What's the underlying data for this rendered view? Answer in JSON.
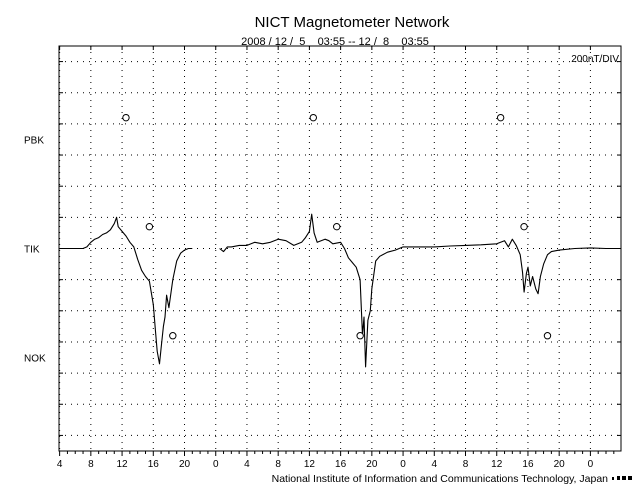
{
  "chart_data": {
    "type": "line",
    "title": "NICT Magnetometer Network",
    "subtitle": "2008 / 12 /  5    03:55 -- 12 /  8    03:55",
    "scale_label": "200nT/DIV",
    "credit": "National Institute of Information and Communications Technology, Japan",
    "x_tick_labels": [
      "4",
      "8",
      "12",
      "16",
      "20",
      "0",
      "4",
      "8",
      "12",
      "16",
      "20",
      "0",
      "4",
      "8",
      "12",
      "16",
      "20",
      "0"
    ],
    "x_ticks_hours": [
      4,
      8,
      12,
      16,
      20,
      24,
      28,
      32,
      36,
      40,
      44,
      48,
      52,
      56,
      60,
      64,
      68,
      72
    ],
    "xlim_hours": [
      3.92,
      75.92
    ],
    "ylim_divisions": [
      -6.5,
      6.5
    ],
    "grid": true,
    "stations": [
      {
        "name": "PBK",
        "baseline_div": 3.5
      },
      {
        "name": "TIK",
        "baseline_div": 0
      },
      {
        "name": "NOK",
        "baseline_div": -3.5
      }
    ],
    "series": [
      {
        "name": "TIK",
        "baseline_div": 0,
        "segments": [
          [
            [
              3.92,
              0
            ],
            [
              7.0,
              0
            ],
            [
              7.5,
              0.05
            ],
            [
              8.0,
              0.2
            ],
            [
              8.5,
              0.3
            ],
            [
              9.0,
              0.35
            ],
            [
              9.5,
              0.45
            ],
            [
              10.0,
              0.5
            ],
            [
              10.5,
              0.6
            ],
            [
              11.0,
              0.8
            ],
            [
              11.3,
              1.0
            ],
            [
              11.5,
              0.7
            ],
            [
              12.0,
              0.55
            ],
            [
              12.5,
              0.4
            ],
            [
              13.0,
              0.2
            ],
            [
              13.5,
              0.05
            ],
            [
              14.0,
              -0.35
            ],
            [
              14.5,
              -0.7
            ],
            [
              15.0,
              -0.9
            ],
            [
              15.5,
              -1.05
            ],
            [
              16.0,
              -1.8
            ],
            [
              16.3,
              -2.7
            ],
            [
              16.5,
              -3.3
            ],
            [
              16.8,
              -3.7
            ],
            [
              17.0,
              -3.2
            ],
            [
              17.3,
              -2.5
            ],
            [
              17.5,
              -2.2
            ],
            [
              17.7,
              -1.5
            ],
            [
              18.0,
              -1.9
            ],
            [
              18.5,
              -1.0
            ],
            [
              19.0,
              -0.4
            ],
            [
              19.5,
              -0.15
            ],
            [
              20.0,
              -0.05
            ],
            [
              20.5,
              0.0
            ],
            [
              21.0,
              0.0
            ]
          ],
          [
            [
              24.5,
              0
            ],
            [
              25.0,
              -0.1
            ],
            [
              25.5,
              0.05
            ],
            [
              26.0,
              0.05
            ],
            [
              27.0,
              0.1
            ],
            [
              28.0,
              0.1
            ],
            [
              29.0,
              0.2
            ],
            [
              30.0,
              0.15
            ],
            [
              31.0,
              0.2
            ],
            [
              32.0,
              0.3
            ],
            [
              33.0,
              0.25
            ],
            [
              34.0,
              0.1
            ],
            [
              35.0,
              0.2
            ],
            [
              35.5,
              0.35
            ],
            [
              36.0,
              0.55
            ],
            [
              36.3,
              1.1
            ],
            [
              36.6,
              0.5
            ],
            [
              37.0,
              0.2
            ],
            [
              38.0,
              0.3
            ],
            [
              38.5,
              0.25
            ],
            [
              39.0,
              0.15
            ],
            [
              40.0,
              0.2
            ],
            [
              40.5,
              0.0
            ],
            [
              41.0,
              -0.3
            ],
            [
              41.5,
              -0.45
            ],
            [
              42.0,
              -0.6
            ],
            [
              42.5,
              -1.0
            ],
            [
              42.8,
              -2.8
            ],
            [
              43.0,
              -2.2
            ],
            [
              43.2,
              -3.8
            ],
            [
              43.5,
              -2.3
            ],
            [
              43.8,
              -2.0
            ],
            [
              44.0,
              -1.3
            ],
            [
              44.5,
              -0.4
            ],
            [
              45.0,
              -0.25
            ],
            [
              46.0,
              -0.12
            ],
            [
              47.0,
              -0.05
            ],
            [
              48.0,
              0.05
            ],
            [
              50.0,
              0.05
            ],
            [
              52.0,
              0.05
            ],
            [
              54.0,
              0.08
            ],
            [
              56.0,
              0.1
            ],
            [
              58.0,
              0.12
            ],
            [
              60.0,
              0.15
            ],
            [
              61.0,
              0.25
            ],
            [
              61.5,
              0.05
            ],
            [
              62.0,
              0.3
            ],
            [
              62.5,
              0.1
            ],
            [
              63.0,
              -0.2
            ],
            [
              63.3,
              -0.75
            ],
            [
              63.5,
              -1.4
            ],
            [
              63.8,
              -0.8
            ],
            [
              64.0,
              -0.6
            ],
            [
              64.3,
              -1.2
            ],
            [
              64.6,
              -0.9
            ],
            [
              65.0,
              -1.3
            ],
            [
              65.3,
              -1.45
            ],
            [
              65.6,
              -0.9
            ],
            [
              66.0,
              -0.5
            ],
            [
              66.5,
              -0.2
            ],
            [
              67.0,
              -0.1
            ],
            [
              68.0,
              -0.05
            ],
            [
              70.0,
              0.0
            ],
            [
              72.0,
              0.02
            ],
            [
              74.0,
              0.0
            ],
            [
              75.92,
              0.0
            ]
          ]
        ]
      }
    ],
    "markers": [
      {
        "station": "PBK",
        "hours": [
          12.5,
          36.5,
          60.5
        ]
      },
      {
        "station": "TIK",
        "hours": [
          15.5,
          39.5,
          63.5
        ]
      },
      {
        "station": "NOK",
        "hours": [
          18.5,
          42.5,
          66.5
        ]
      }
    ]
  }
}
